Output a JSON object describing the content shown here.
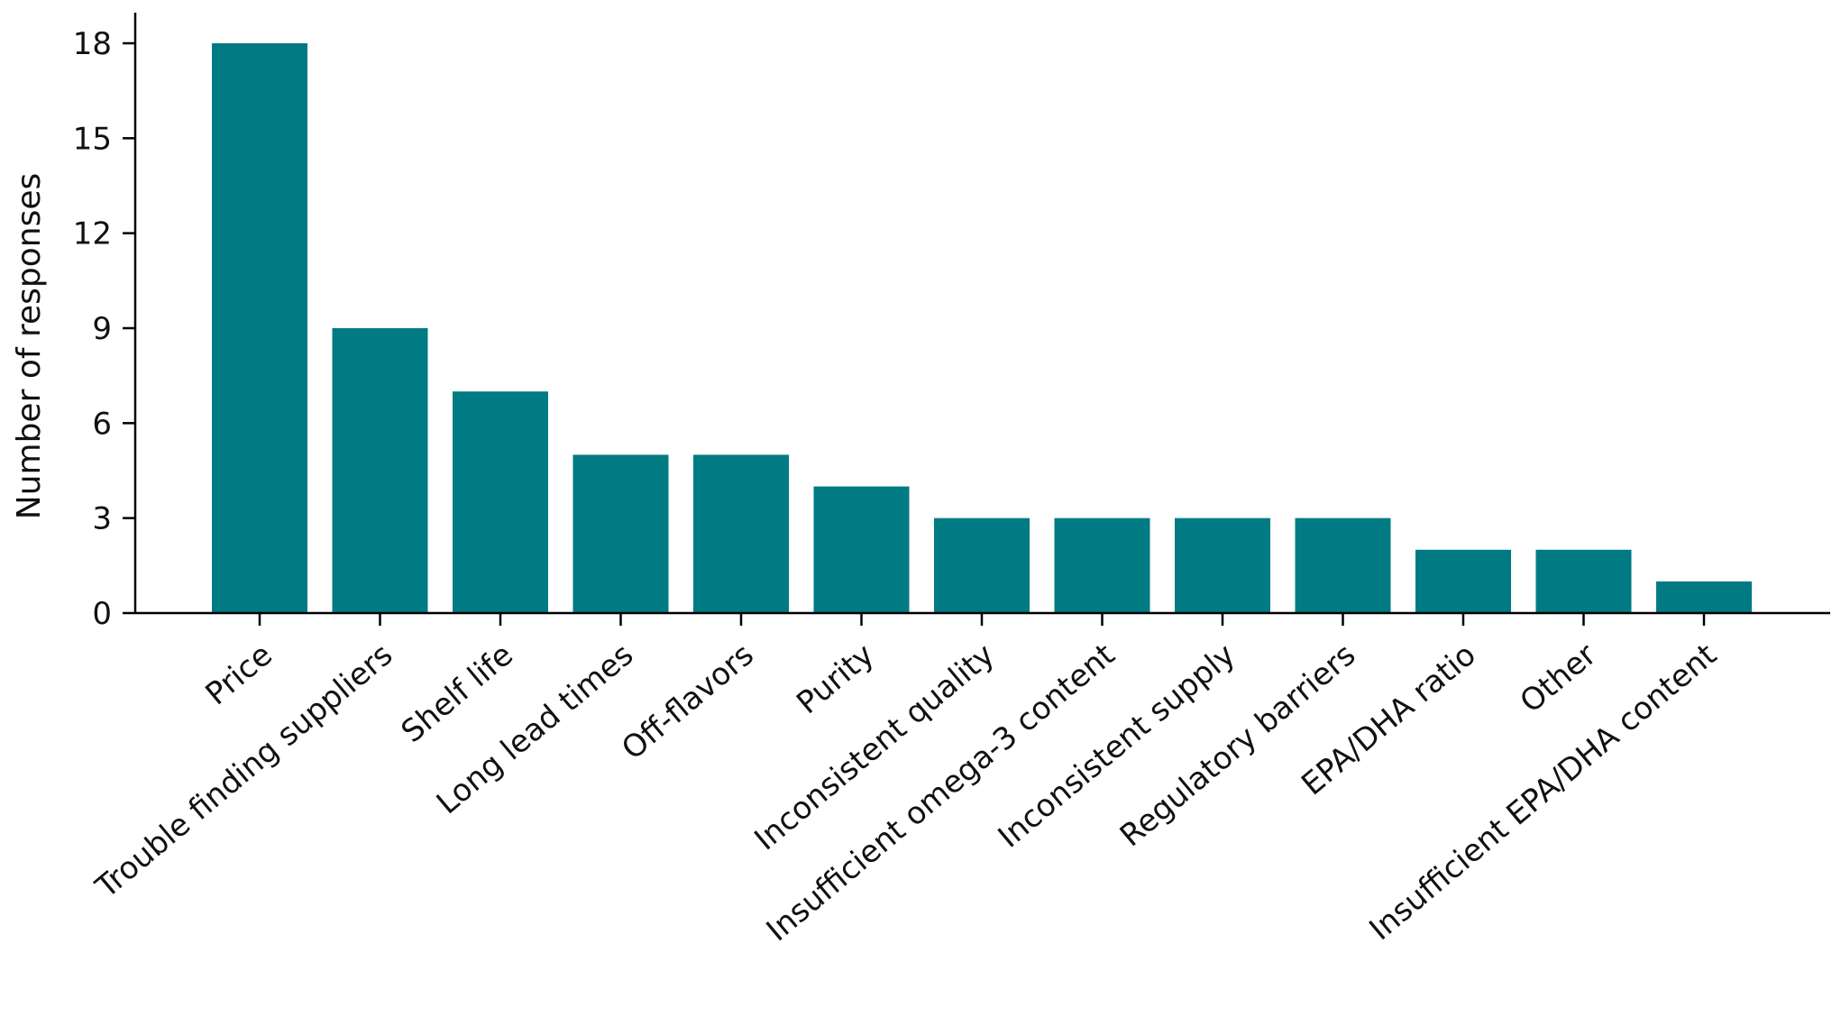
{
  "chart_data": {
    "type": "bar",
    "title": "",
    "xlabel": "",
    "ylabel": "Number of responses",
    "categories": [
      "Price",
      "Trouble finding suppliers",
      "Shelf life",
      "Long lead times",
      "Off-flavors",
      "Purity",
      "Inconsistent quality",
      "Insufficient omega-3 content",
      "Inconsistent supply",
      "Regulatory barriers",
      "EPA/DHA ratio",
      "Other",
      "Insufficient EPA/DHA content"
    ],
    "values": [
      18,
      9,
      7,
      5,
      5,
      4,
      3,
      3,
      3,
      3,
      2,
      2,
      1
    ],
    "ylim": [
      0,
      18
    ],
    "yticks": [
      0,
      3,
      6,
      9,
      12,
      15,
      18
    ],
    "grid": false,
    "legend": "none",
    "bar_color": "#007b83"
  }
}
